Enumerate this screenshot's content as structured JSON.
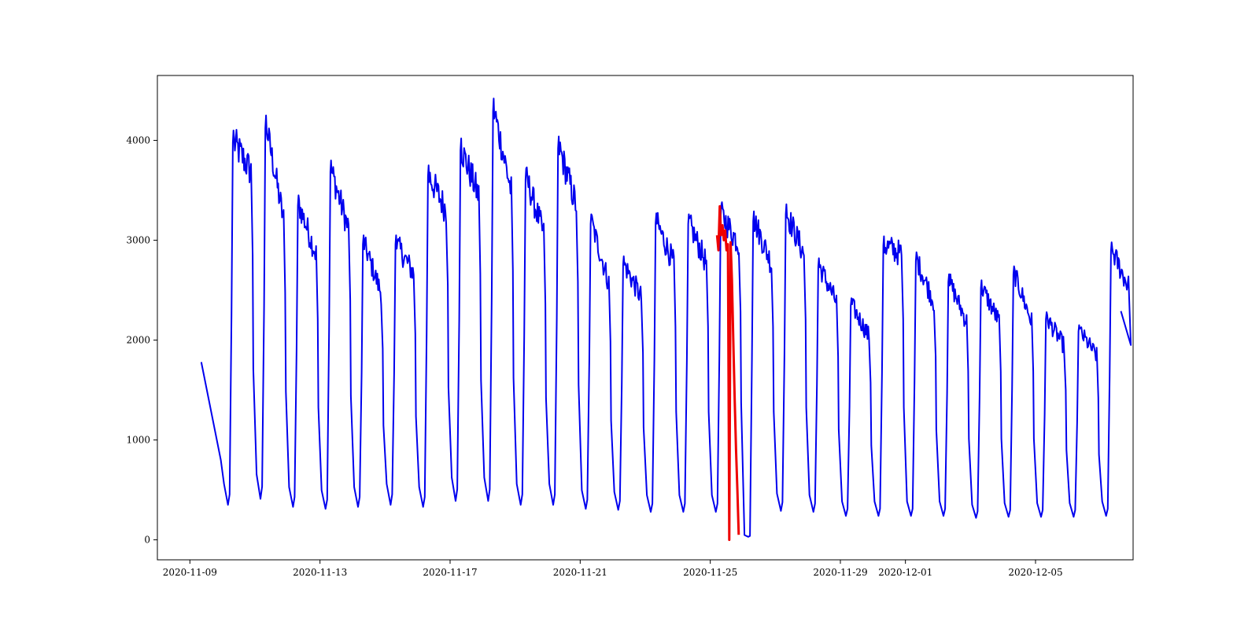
{
  "chart_data": {
    "type": "line",
    "title": "",
    "xlabel": "",
    "ylabel": "",
    "x_range": [
      "2020-11-08",
      "2020-12-08"
    ],
    "ylim": [
      -200,
      4650
    ],
    "grid": false,
    "legend": "none",
    "x_ticks": [
      "2020-11-09",
      "2020-11-13",
      "2020-11-17",
      "2020-11-21",
      "2020-11-25",
      "2020-11-29",
      "2020-12-01",
      "2020-12-05"
    ],
    "y_ticks": [
      0,
      1000,
      2000,
      3000,
      4000
    ],
    "series": [
      {
        "color": "#0000ee",
        "line_width": 2,
        "daily": [
          {
            "date": "2020-11-09",
            "low": 1780,
            "peak": 1780,
            "plateau": 1780
          },
          {
            "date": "2020-11-10",
            "low": 350,
            "peak": 4100,
            "plateau": 3800
          },
          {
            "date": "2020-11-11",
            "low": 410,
            "peak": 4250,
            "plateau": 3300
          },
          {
            "date": "2020-11-12",
            "low": 330,
            "peak": 3450,
            "plateau": 2950
          },
          {
            "date": "2020-11-13",
            "low": 310,
            "peak": 3800,
            "plateau": 3200
          },
          {
            "date": "2020-11-14",
            "low": 330,
            "peak": 3050,
            "plateau": 2550
          },
          {
            "date": "2020-11-15",
            "low": 350,
            "peak": 3050,
            "plateau": 2750
          },
          {
            "date": "2020-11-16",
            "low": 330,
            "peak": 3750,
            "plateau": 3400
          },
          {
            "date": "2020-11-17",
            "low": 390,
            "peak": 4020,
            "plateau": 3550
          },
          {
            "date": "2020-11-18",
            "low": 390,
            "peak": 4420,
            "plateau": 3600
          },
          {
            "date": "2020-11-19",
            "low": 350,
            "peak": 3720,
            "plateau": 3150
          },
          {
            "date": "2020-11-20",
            "low": 350,
            "peak": 4040,
            "plateau": 3450
          },
          {
            "date": "2020-11-21",
            "low": 310,
            "peak": 3260,
            "plateau": 2650
          },
          {
            "date": "2020-11-22",
            "low": 300,
            "peak": 2840,
            "plateau": 2500
          },
          {
            "date": "2020-11-23",
            "low": 280,
            "peak": 3270,
            "plateau": 2850
          },
          {
            "date": "2020-11-24",
            "low": 280,
            "peak": 3260,
            "plateau": 2850
          },
          {
            "date": "2020-11-25",
            "low": 280,
            "peak": 3350,
            "plateau": 3050
          },
          {
            "date": "2020-11-26",
            "low": 30,
            "peak": 3290,
            "plateau": 2850
          },
          {
            "date": "2020-11-27",
            "low": 290,
            "peak": 3360,
            "plateau": 2950
          },
          {
            "date": "2020-11-28",
            "low": 280,
            "peak": 2820,
            "plateau": 2450
          },
          {
            "date": "2020-11-29",
            "low": 240,
            "peak": 2420,
            "plateau": 2100
          },
          {
            "date": "2020-11-30",
            "low": 240,
            "peak": 3040,
            "plateau": 2950
          },
          {
            "date": "2020-12-01",
            "low": 240,
            "peak": 2880,
            "plateau": 2450
          },
          {
            "date": "2020-12-02",
            "low": 240,
            "peak": 2660,
            "plateau": 2250
          },
          {
            "date": "2020-12-03",
            "low": 220,
            "peak": 2600,
            "plateau": 2250
          },
          {
            "date": "2020-12-04",
            "low": 230,
            "peak": 2740,
            "plateau": 2250
          },
          {
            "date": "2020-12-05",
            "low": 230,
            "peak": 2280,
            "plateau": 2000
          },
          {
            "date": "2020-12-06",
            "low": 230,
            "peak": 2150,
            "plateau": 1900
          },
          {
            "date": "2020-12-07",
            "low": 240,
            "peak": 2980,
            "plateau": 2600
          },
          {
            "date": "2020-12-07T15:00",
            "low": 2290,
            "peak": 2290,
            "plateau": 2290
          }
        ]
      },
      {
        "color": "#ee0000",
        "line_width": 3,
        "points": [
          {
            "x": "2020-11-25T05:00",
            "y": 3050
          },
          {
            "x": "2020-11-25T06:00",
            "y": 2900
          },
          {
            "x": "2020-11-25T07:00",
            "y": 3340
          },
          {
            "x": "2020-11-25T08:00",
            "y": 3050
          },
          {
            "x": "2020-11-25T09:00",
            "y": 3150
          },
          {
            "x": "2020-11-25T10:00",
            "y": 3000
          },
          {
            "x": "2020-11-25T11:00",
            "y": 3100
          },
          {
            "x": "2020-11-25T12:00",
            "y": 2900
          },
          {
            "x": "2020-11-25T13:00",
            "y": 2960
          },
          {
            "x": "2020-11-25T14:00",
            "y": 0
          },
          {
            "x": "2020-11-25T15:00",
            "y": 2980
          },
          {
            "x": "2020-11-25T16:00",
            "y": 2600
          },
          {
            "x": "2020-11-25T17:00",
            "y": 2000
          },
          {
            "x": "2020-11-25T18:00",
            "y": 1400
          },
          {
            "x": "2020-11-25T19:00",
            "y": 900
          },
          {
            "x": "2020-11-25T20:00",
            "y": 500
          },
          {
            "x": "2020-11-25T21:00",
            "y": 50
          }
        ]
      }
    ]
  }
}
